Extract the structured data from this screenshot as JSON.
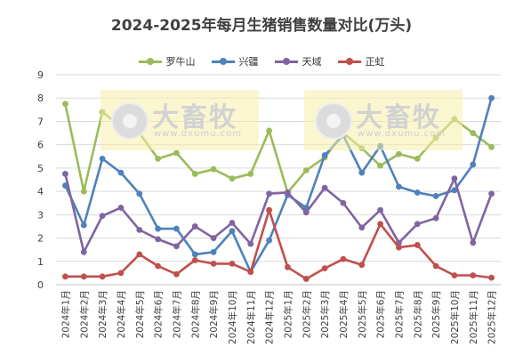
{
  "chart_data": {
    "type": "line",
    "title": "2024-2025年每月生猪销售数量对比(万头)",
    "categories": [
      "2024年1月",
      "2024年2月",
      "2024年3月",
      "2024年4月",
      "2024年5月",
      "2024年6月",
      "2024年7月",
      "2024年8月",
      "2024年9月",
      "2024年10月",
      "2024年11月",
      "2024年12月",
      "2025年1月",
      "2025年2月",
      "2025年3月",
      "2025年4月",
      "2025年5月",
      "2025年6月",
      "2025年7月",
      "2025年8月",
      "2025年9月",
      "2025年10月",
      "2025年11月",
      "2025年12月"
    ],
    "ylim": [
      0,
      9
    ],
    "yticks": [
      0,
      1,
      2,
      3,
      4,
      5,
      6,
      7,
      8,
      9
    ],
    "grid": true,
    "legend_position": "top",
    "series": [
      {
        "name": "罗牛山",
        "color": "#9bbb59",
        "values": [
          7.75,
          4.0,
          7.4,
          6.8,
          6.5,
          5.4,
          5.65,
          4.75,
          4.95,
          4.55,
          4.75,
          6.6,
          3.95,
          4.9,
          5.45,
          6.5,
          5.85,
          5.1,
          5.6,
          5.4,
          6.3,
          7.1,
          6.5,
          5.9
        ]
      },
      {
        "name": "兴疆",
        "color": "#4f81bd",
        "values": [
          4.25,
          2.55,
          5.4,
          4.8,
          3.9,
          2.4,
          2.4,
          1.3,
          1.4,
          2.3,
          0.55,
          1.9,
          3.85,
          3.3,
          5.55,
          6.4,
          4.8,
          5.95,
          4.2,
          3.95,
          3.8,
          4.05,
          5.15,
          8.0
        ]
      },
      {
        "name": "天域",
        "color": "#8064a2",
        "values": [
          4.75,
          1.4,
          2.95,
          3.3,
          2.35,
          1.95,
          1.65,
          2.5,
          2.0,
          2.65,
          1.75,
          3.9,
          3.95,
          3.1,
          4.15,
          3.5,
          2.45,
          3.2,
          1.8,
          2.6,
          2.85,
          4.55,
          1.8,
          3.9
        ]
      },
      {
        "name": "正虹",
        "color": "#c0504d",
        "values": [
          0.35,
          0.35,
          0.35,
          0.5,
          1.3,
          0.8,
          0.45,
          1.05,
          0.9,
          0.9,
          0.55,
          3.2,
          0.75,
          0.25,
          0.7,
          1.1,
          0.85,
          2.6,
          1.6,
          1.7,
          0.8,
          0.4,
          0.4,
          0.3
        ]
      }
    ]
  },
  "watermark": {
    "name": "大畜牧",
    "url": "www.dxumu.com"
  }
}
